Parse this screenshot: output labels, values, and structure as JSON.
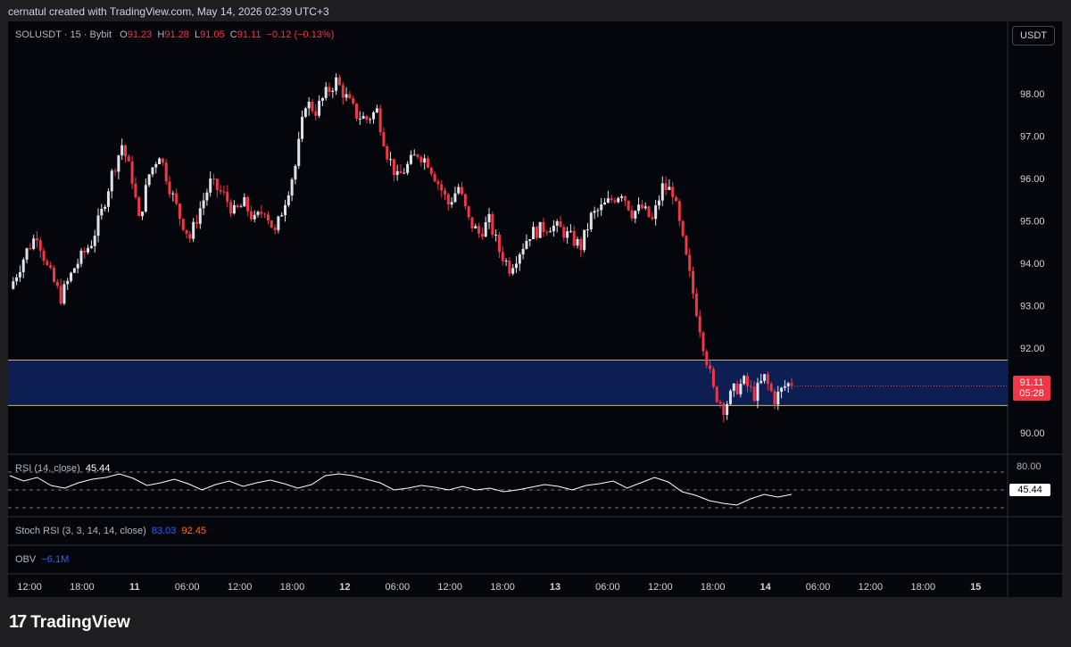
{
  "header": {
    "attribution": "cernatul created with TradingView.com, May 14, 2026 02:39 UTC+3"
  },
  "symbol": {
    "label": "SOLUSDT · 15 · Bybit",
    "o_label": "O",
    "o_value": "91.23",
    "h_label": "H",
    "h_value": "91.28",
    "l_label": "L",
    "l_value": "91.05",
    "c_label": "C",
    "c_value": "91.11",
    "change": "−0.12 (−0.13%)"
  },
  "currency_button": "USDT",
  "price_tag": {
    "price": "91.11",
    "countdown": "05:28"
  },
  "rsi": {
    "label": "RSI (14, close)",
    "value": "45.44",
    "level_label": "80.00",
    "tag": "45.44"
  },
  "stoch_rsi": {
    "label": "Stoch RSI (3, 3, 14, 14, close)",
    "k": "83.03",
    "d": "92.45"
  },
  "obv": {
    "label": "OBV",
    "value": "−6.1M"
  },
  "brand": {
    "name": "TradingView",
    "logo_text": "17"
  },
  "colors": {
    "up": "#e0e3eb",
    "down": "#f23645",
    "zone_fill": "#0c1e52",
    "zone_line": "#c9b86c",
    "rsi_line": "#ffffff",
    "stoch_k": "#2962ff",
    "stoch_d": "#ff6d00"
  },
  "chart_data": {
    "type": "candlestick",
    "title": "SOLUSDT · 15 · Bybit",
    "x_ticks": [
      "12:00",
      "18:00",
      "11",
      "06:00",
      "12:00",
      "18:00",
      "12",
      "06:00",
      "12:00",
      "18:00",
      "13",
      "06:00",
      "12:00",
      "18:00",
      "14",
      "06:00",
      "12:00",
      "18:00",
      "15"
    ],
    "y_ticks": [
      90,
      91,
      92,
      93,
      94,
      95,
      96,
      97,
      98
    ],
    "y_tick_labels": [
      "90.00",
      "91.00",
      "92.00",
      "93.00",
      "94.00",
      "95.00",
      "96.00",
      "97.00",
      "98.00"
    ],
    "ylim": [
      89.5,
      99.2
    ],
    "zone": {
      "low": 90.65,
      "high": 91.72
    },
    "price_path": [
      [
        0,
        93.4
      ],
      [
        5,
        94.3
      ],
      [
        8,
        94.7
      ],
      [
        11,
        93.9
      ],
      [
        15,
        93.2
      ],
      [
        19,
        93.9
      ],
      [
        24,
        94.5
      ],
      [
        27,
        95.2
      ],
      [
        30,
        96.1
      ],
      [
        33,
        96.8
      ],
      [
        36,
        96.0
      ],
      [
        38,
        95.0
      ],
      [
        41,
        96.1
      ],
      [
        44,
        96.6
      ],
      [
        47,
        95.8
      ],
      [
        50,
        95.1
      ],
      [
        53,
        94.6
      ],
      [
        56,
        95.3
      ],
      [
        59,
        95.9
      ],
      [
        63,
        95.6
      ],
      [
        66,
        95.2
      ],
      [
        69,
        95.4
      ],
      [
        72,
        95.0
      ],
      [
        75,
        95.3
      ],
      [
        78,
        94.7
      ],
      [
        81,
        95.5
      ],
      [
        84,
        96.3
      ],
      [
        87,
        97.8
      ],
      [
        90,
        97.6
      ],
      [
        93,
        98.0
      ],
      [
        96,
        98.3
      ],
      [
        99,
        97.9
      ],
      [
        102,
        97.5
      ],
      [
        105,
        97.4
      ],
      [
        108,
        97.6
      ],
      [
        111,
        96.6
      ],
      [
        114,
        96.0
      ],
      [
        117,
        96.3
      ],
      [
        120,
        96.6
      ],
      [
        123,
        96.4
      ],
      [
        126,
        95.9
      ],
      [
        129,
        95.4
      ],
      [
        132,
        95.8
      ],
      [
        135,
        95.0
      ],
      [
        138,
        94.7
      ],
      [
        141,
        95.0
      ],
      [
        144,
        94.3
      ],
      [
        147,
        93.9
      ],
      [
        150,
        94.3
      ],
      [
        153,
        94.7
      ],
      [
        156,
        94.8
      ],
      [
        159,
        94.9
      ],
      [
        162,
        94.8
      ],
      [
        165,
        94.6
      ],
      [
        168,
        94.4
      ],
      [
        171,
        95.1
      ],
      [
        174,
        95.3
      ],
      [
        177,
        95.5
      ],
      [
        180,
        95.7
      ],
      [
        183,
        95.2
      ],
      [
        186,
        95.3
      ],
      [
        189,
        95.0
      ],
      [
        192,
        95.8
      ],
      [
        195,
        95.7
      ],
      [
        198,
        94.5
      ],
      [
        201,
        93.3
      ],
      [
        204,
        92.1
      ],
      [
        207,
        91.0
      ],
      [
        210,
        90.6
      ],
      [
        213,
        91.0
      ],
      [
        216,
        91.2
      ],
      [
        219,
        90.9
      ],
      [
        222,
        91.3
      ],
      [
        225,
        90.8
      ],
      [
        228,
        91.1
      ],
      [
        230,
        91.2
      ]
    ],
    "rsi_values": [
      66,
      60,
      64,
      55,
      52,
      58,
      62,
      64,
      68,
      63,
      55,
      58,
      62,
      57,
      50,
      56,
      60,
      54,
      58,
      61,
      57,
      52,
      56,
      66,
      68,
      66,
      62,
      58,
      50,
      52,
      55,
      53,
      50,
      54,
      50,
      52,
      48,
      50,
      53,
      56,
      54,
      50,
      55,
      57,
      60,
      52,
      58,
      64,
      59,
      48,
      44,
      38,
      35,
      33,
      40,
      45,
      42,
      45
    ],
    "rsi_ylim": [
      20,
      85
    ],
    "rsi_levels": [
      70,
      50,
      30
    ]
  }
}
